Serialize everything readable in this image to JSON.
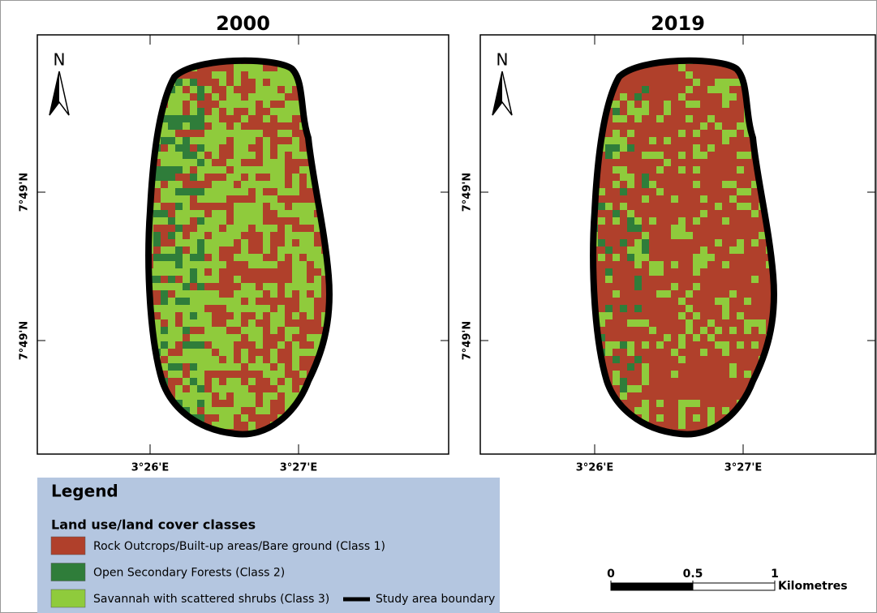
{
  "maps": [
    {
      "title": "2000",
      "north": "N",
      "lat_labels": [
        "7°49'N",
        "7°49'N"
      ],
      "lon_labels": [
        "3°26'E",
        "3°27'E"
      ]
    },
    {
      "title": "2019",
      "north": "N",
      "lat_labels": [
        "7°49'N",
        "7°49'N"
      ],
      "lon_labels": [
        "3°26'E",
        "3°27'E"
      ]
    }
  ],
  "legend": {
    "title": "Legend",
    "subtitle": "Land use/land cover classes",
    "classes": [
      {
        "label": "Rock Outcrops/Built-up areas/Bare ground (Class 1)",
        "color": "#b0402b"
      },
      {
        "label": "Open Secondary Forests (Class 2)",
        "color": "#2f7d3a"
      },
      {
        "label": "Savannah with scattered shrubs (Class 3)",
        "color": "#8fcb3c"
      }
    ],
    "boundary": "Study area boundary"
  },
  "scale_bar": {
    "ticks": [
      0,
      0.5,
      1
    ],
    "unit": "Kilometres"
  }
}
